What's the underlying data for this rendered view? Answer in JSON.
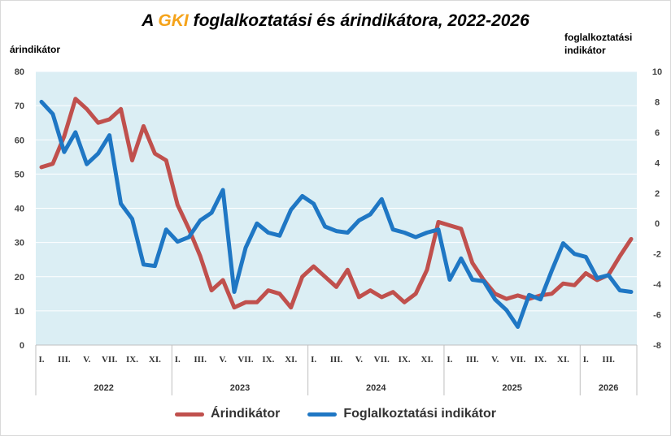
{
  "title": {
    "prefix": "A ",
    "brand": "GKI",
    "suffix": " foglalkoztatási és árindikátora, 2022-2026"
  },
  "colors": {
    "price": "#c0504d",
    "employment": "#1f77c4",
    "brand": "#f5a31a",
    "plot_bg": "#dbeef4",
    "grid": "#ffffff"
  },
  "chart_data": {
    "type": "line",
    "left_axis_label": "árindikátor",
    "right_axis_label": "foglalkoztatási indikátor",
    "left_ylim": [
      0,
      80
    ],
    "left_ticks": [
      "0",
      "10",
      "20",
      "30",
      "40",
      "50",
      "60",
      "70",
      "80"
    ],
    "right_ylim": [
      -8,
      10
    ],
    "right_ticks": [
      "-8",
      "-6",
      "-4",
      "-2",
      "0",
      "2",
      "4",
      "6",
      "8",
      "10"
    ],
    "grid": true,
    "legend_position": "bottom",
    "categories": [
      "I.",
      "",
      "III.",
      "",
      "V.",
      "",
      "VII.",
      "",
      "IX.",
      "",
      "XI.",
      "",
      "I.",
      "",
      "III.",
      "",
      "V.",
      "",
      "VII.",
      "",
      "IX.",
      "",
      "XI.",
      "",
      "I.",
      "",
      "III.",
      "",
      "V.",
      "",
      "VII.",
      "",
      "IX.",
      "",
      "XI.",
      "",
      "I.",
      "",
      "III.",
      "",
      "V.",
      "",
      "VII.",
      "",
      "IX.",
      "",
      "XI.",
      "",
      "I.",
      "",
      "III.",
      "",
      ""
    ],
    "years": [
      {
        "label": "2022",
        "start": 0,
        "end": 12
      },
      {
        "label": "2023",
        "start": 12,
        "end": 24
      },
      {
        "label": "2024",
        "start": 24,
        "end": 36
      },
      {
        "label": "2025",
        "start": 36,
        "end": 48
      },
      {
        "label": "2026",
        "start": 48,
        "end": 53
      }
    ],
    "series": [
      {
        "name": "Árindikátor",
        "axis": "left",
        "values": [
          52,
          53,
          61,
          72,
          69,
          65,
          66,
          69,
          54,
          64,
          56,
          54,
          41,
          34,
          26,
          16,
          19,
          11,
          12.5,
          12.5,
          16,
          15,
          11,
          20,
          23,
          20,
          17,
          22,
          14,
          16,
          14,
          15.5,
          12.5,
          15,
          22,
          36,
          35,
          34,
          24,
          19,
          15,
          13.5,
          14.5,
          13.5,
          14.5,
          15,
          18,
          17.5,
          21,
          19,
          20.5,
          26,
          31
        ]
      },
      {
        "name": "Foglalkoztatási indikátor",
        "axis": "right",
        "values": [
          8.0,
          7.2,
          4.7,
          6.0,
          3.9,
          4.6,
          5.8,
          1.3,
          0.3,
          -2.7,
          -2.8,
          -0.4,
          -1.2,
          -0.9,
          0.2,
          0.7,
          2.2,
          -4.5,
          -1.6,
          0,
          -0.6,
          -0.8,
          0.9,
          1.8,
          1.3,
          -0.2,
          -0.5,
          -0.6,
          0.2,
          0.6,
          1.6,
          -0.4,
          -0.6,
          -0.9,
          -0.6,
          -0.4,
          -3.7,
          -2.3,
          -3.7,
          -3.8,
          -5.0,
          -5.7,
          -6.8,
          -4.7,
          -5.0,
          -3.1,
          -1.3,
          -2.0,
          -2.2,
          -3.6,
          -3.4,
          -4.4,
          -4.5
        ]
      }
    ]
  },
  "legend": {
    "price_label": "Árindikátor",
    "employment_label": "Foglalkoztatási indikátor"
  }
}
